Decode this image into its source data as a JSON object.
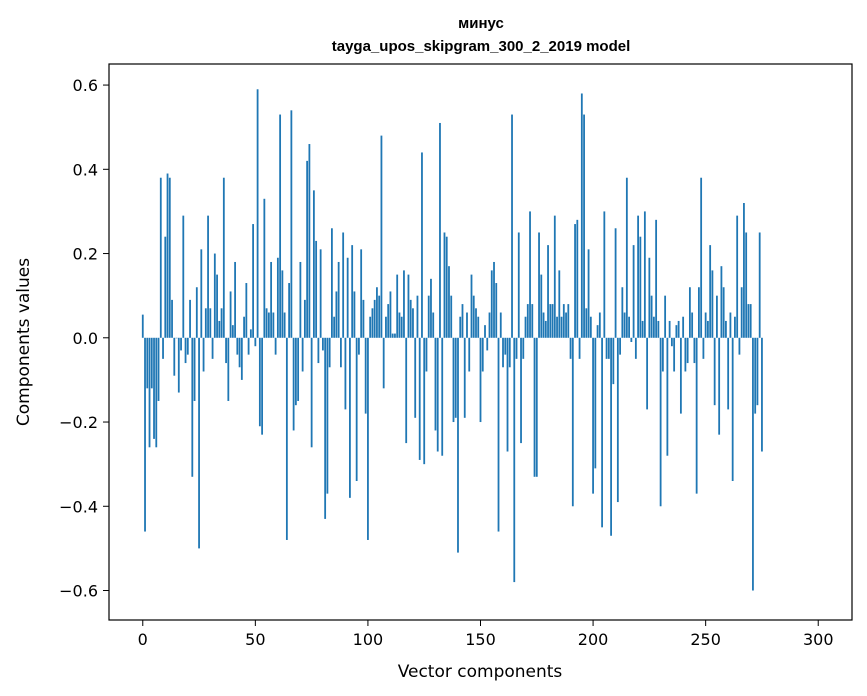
{
  "chart_data": {
    "type": "bar",
    "title_line1": "минус",
    "title_line2": "tayga_upos_skipgram_300_2_2019 model",
    "xlabel": "Vector components",
    "ylabel": "Components values",
    "xlim": [
      -15,
      315
    ],
    "ylim": [
      -0.67,
      0.65
    ],
    "xticks": [
      0,
      50,
      100,
      150,
      200,
      250,
      300
    ],
    "xtick_labels": [
      "0",
      "50",
      "100",
      "150",
      "200",
      "250",
      "300"
    ],
    "yticks": [
      -0.6,
      -0.4,
      -0.2,
      0.0,
      0.2,
      0.4,
      0.6
    ],
    "ytick_labels": [
      "−0.6",
      "−0.4",
      "−0.2",
      "0.0",
      "0.2",
      "0.4",
      "0.6"
    ],
    "bar_color": "#1f77b4",
    "grid": false,
    "values": [
      0.055,
      -0.46,
      -0.12,
      -0.26,
      -0.12,
      -0.24,
      -0.26,
      -0.15,
      0.38,
      -0.05,
      0.24,
      0.39,
      0.38,
      0.09,
      -0.09,
      0.0,
      -0.13,
      -0.03,
      0.29,
      -0.06,
      -0.04,
      0.09,
      -0.33,
      -0.15,
      0.12,
      -0.5,
      0.21,
      -0.08,
      0.07,
      0.29,
      0.07,
      -0.05,
      0.2,
      0.15,
      0.04,
      0.07,
      0.38,
      -0.06,
      -0.15,
      0.11,
      0.03,
      0.18,
      -0.04,
      -0.07,
      -0.1,
      0.05,
      0.13,
      -0.04,
      0.02,
      0.27,
      -0.02,
      0.59,
      -0.21,
      -0.23,
      0.33,
      0.07,
      0.06,
      0.18,
      0.06,
      -0.04,
      0.19,
      0.53,
      0.16,
      0.06,
      -0.48,
      0.13,
      0.54,
      -0.22,
      -0.16,
      -0.15,
      0.18,
      -0.08,
      0.09,
      0.42,
      0.46,
      -0.26,
      0.35,
      0.23,
      -0.06,
      0.21,
      -0.03,
      -0.43,
      -0.37,
      -0.07,
      0.26,
      0.05,
      0.11,
      0.18,
      -0.07,
      0.25,
      -0.17,
      0.19,
      -0.38,
      0.22,
      0.11,
      -0.34,
      -0.04,
      0.21,
      0.09,
      -0.18,
      -0.48,
      0.05,
      0.07,
      0.09,
      0.12,
      0.1,
      0.48,
      -0.12,
      0.05,
      0.08,
      0.11,
      0.01,
      0.01,
      0.15,
      0.06,
      0.05,
      0.16,
      -0.25,
      0.15,
      0.09,
      0.07,
      -0.19,
      0.1,
      -0.29,
      0.44,
      -0.3,
      -0.08,
      0.1,
      0.14,
      0.06,
      -0.22,
      -0.27,
      0.51,
      -0.28,
      0.25,
      0.24,
      0.17,
      0.1,
      -0.2,
      -0.19,
      -0.51,
      0.05,
      0.08,
      -0.19,
      0.06,
      -0.08,
      0.15,
      0.1,
      0.07,
      0.05,
      -0.2,
      -0.08,
      0.03,
      -0.03,
      0.06,
      0.16,
      0.18,
      0.13,
      -0.46,
      0.06,
      -0.07,
      -0.04,
      -0.27,
      -0.07,
      0.53,
      -0.58,
      -0.05,
      0.25,
      -0.25,
      -0.05,
      0.05,
      0.08,
      0.3,
      0.08,
      -0.33,
      -0.33,
      0.25,
      0.15,
      0.06,
      0.04,
      0.22,
      0.08,
      0.08,
      0.29,
      0.05,
      0.16,
      0.05,
      0.08,
      0.06,
      0.08,
      -0.05,
      -0.4,
      0.27,
      0.28,
      -0.05,
      0.58,
      0.53,
      0.07,
      0.21,
      0.05,
      -0.37,
      -0.31,
      0.03,
      0.06,
      -0.45,
      0.3,
      -0.05,
      -0.05,
      -0.47,
      -0.11,
      0.26,
      -0.39,
      -0.04,
      0.12,
      0.06,
      0.38,
      0.05,
      -0.01,
      0.22,
      -0.05,
      0.29,
      0.24,
      0.04,
      0.3,
      -0.17,
      0.19,
      0.1,
      0.05,
      0.28,
      0.04,
      -0.4,
      -0.08,
      0.1,
      -0.28,
      0.04,
      -0.02,
      -0.08,
      0.03,
      0.04,
      -0.18,
      0.05,
      -0.08,
      -0.06,
      0.12,
      0.06,
      -0.06,
      -0.37,
      0.12,
      0.38,
      -0.05,
      0.06,
      0.04,
      0.22,
      0.16,
      -0.16,
      0.1,
      -0.23,
      0.17,
      0.12,
      0.04,
      -0.17,
      0.06,
      -0.34,
      0.05,
      0.29,
      -0.04,
      0.12,
      0.32,
      0.25,
      0.08,
      0.08,
      -0.6,
      -0.18,
      -0.16,
      0.25,
      -0.27
    ]
  }
}
